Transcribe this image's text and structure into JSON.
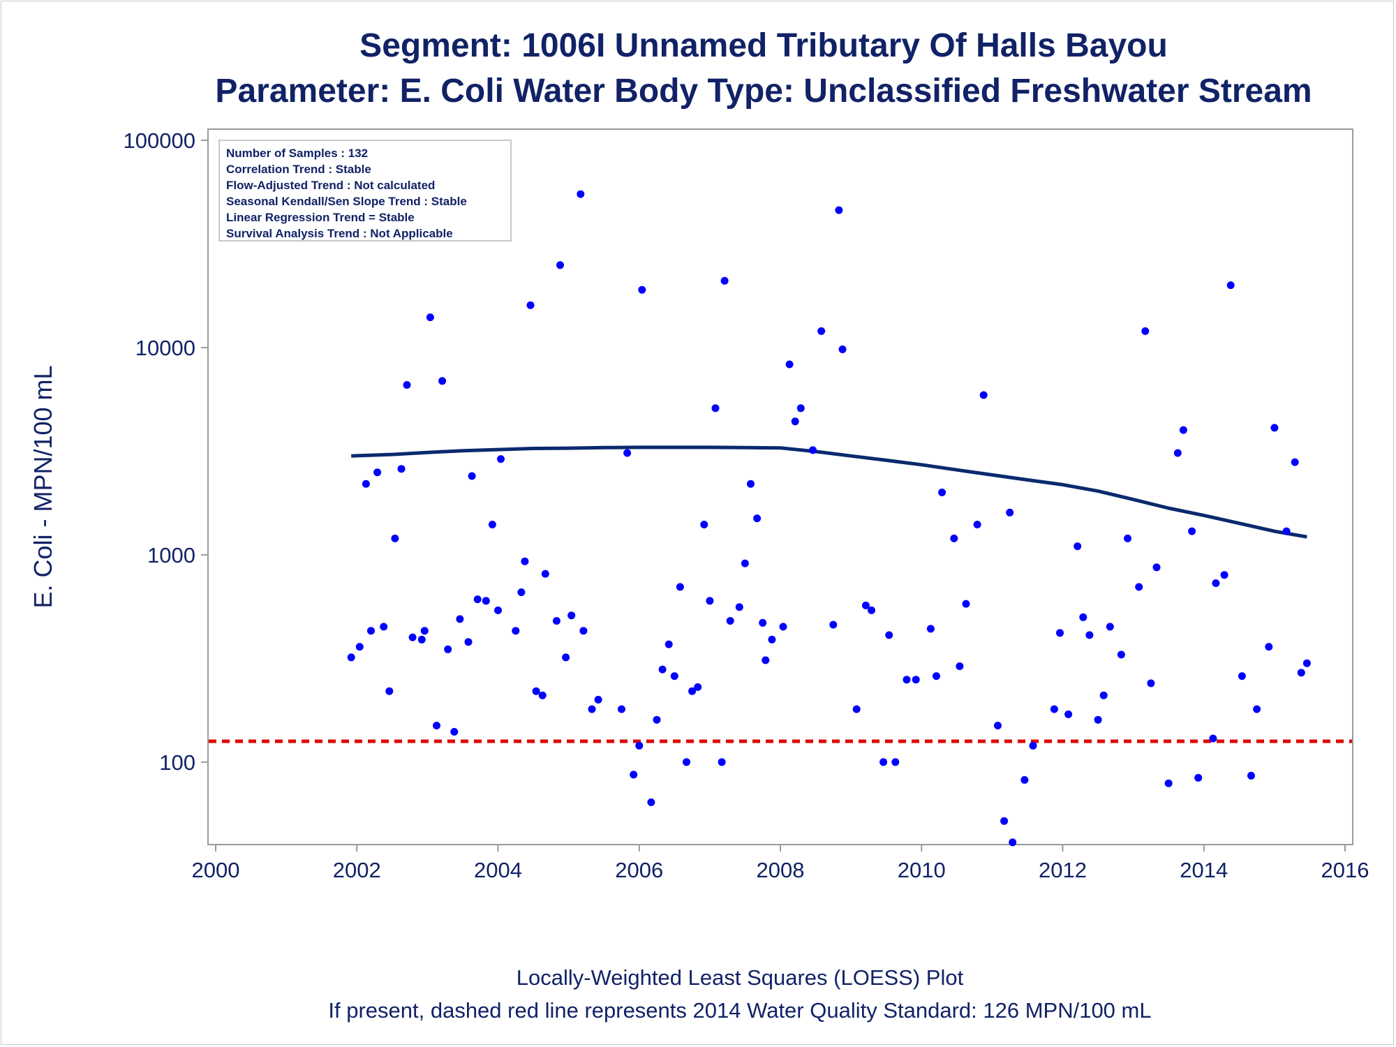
{
  "title_line1": "Segment: 1006I  Unnamed Tributary Of Halls Bayou",
  "title_line2": "Parameter: E. Coli   Water Body Type: Unclassified Freshwater Stream",
  "footnote_line1": "Locally-Weighted Least Squares (LOESS) Plot",
  "footnote_line2": "If present, dashed red line represents 2014 Water Quality Standard: 126 MPN/100 mL",
  "stats_box": [
    "Number of Samples : 132",
    "Correlation Trend : Stable",
    "Flow-Adjusted Trend : Not calculated",
    "Seasonal Kendall/Sen Slope Trend : Stable",
    "Linear Regression Trend = Stable",
    "Survival Analysis Trend : Not Applicable"
  ],
  "colors": {
    "text": "#112266",
    "points": "#0000ff",
    "loess": "#0a2a6e",
    "standard": "#dd0000",
    "axis": "#9a9a9a"
  },
  "chart_data": {
    "type": "scatter",
    "xlabel": "",
    "ylabel": "E. Coli - MPN/100 mL",
    "xlim": [
      2000,
      2016
    ],
    "ylim": [
      40,
      100000
    ],
    "y_scale": "log",
    "x_ticks": [
      2000,
      2002,
      2004,
      2006,
      2008,
      2010,
      2012,
      2014,
      2016
    ],
    "y_ticks": [
      100,
      1000,
      10000,
      100000
    ],
    "standard_line": 126,
    "points": [
      [
        2001.92,
        320
      ],
      [
        2002.04,
        360
      ],
      [
        2002.13,
        2200
      ],
      [
        2002.2,
        430
      ],
      [
        2002.29,
        2500
      ],
      [
        2002.38,
        450
      ],
      [
        2002.46,
        220
      ],
      [
        2002.54,
        1200
      ],
      [
        2002.63,
        2600
      ],
      [
        2002.71,
        6600
      ],
      [
        2002.79,
        400
      ],
      [
        2002.92,
        390
      ],
      [
        2002.96,
        430
      ],
      [
        2003.04,
        14000
      ],
      [
        2003.13,
        150
      ],
      [
        2003.21,
        6900
      ],
      [
        2003.29,
        350
      ],
      [
        2003.38,
        140
      ],
      [
        2003.46,
        490
      ],
      [
        2003.58,
        380
      ],
      [
        2003.63,
        2400
      ],
      [
        2003.71,
        610
      ],
      [
        2003.83,
        600
      ],
      [
        2003.92,
        1400
      ],
      [
        2004.0,
        540
      ],
      [
        2004.04,
        2900
      ],
      [
        2004.25,
        430
      ],
      [
        2004.33,
        660
      ],
      [
        2004.38,
        930
      ],
      [
        2004.46,
        16000
      ],
      [
        2004.54,
        220
      ],
      [
        2004.63,
        210
      ],
      [
        2004.67,
        810
      ],
      [
        2004.83,
        480
      ],
      [
        2004.88,
        25000
      ],
      [
        2004.96,
        320
      ],
      [
        2005.04,
        510
      ],
      [
        2005.17,
        55000
      ],
      [
        2005.21,
        430
      ],
      [
        2005.33,
        180
      ],
      [
        2005.42,
        200
      ],
      [
        2005.75,
        180
      ],
      [
        2005.83,
        3100
      ],
      [
        2005.92,
        87
      ],
      [
        2006.0,
        120
      ],
      [
        2006.04,
        19000
      ],
      [
        2006.17,
        64
      ],
      [
        2006.25,
        160
      ],
      [
        2006.33,
        280
      ],
      [
        2006.42,
        370
      ],
      [
        2006.5,
        260
      ],
      [
        2006.58,
        700
      ],
      [
        2006.67,
        100
      ],
      [
        2006.75,
        220
      ],
      [
        2006.83,
        230
      ],
      [
        2006.92,
        1400
      ],
      [
        2007.0,
        600
      ],
      [
        2007.08,
        5100
      ],
      [
        2007.17,
        100
      ],
      [
        2007.21,
        21000
      ],
      [
        2007.29,
        480
      ],
      [
        2007.42,
        560
      ],
      [
        2007.5,
        910
      ],
      [
        2007.58,
        2200
      ],
      [
        2007.67,
        1500
      ],
      [
        2007.75,
        470
      ],
      [
        2007.79,
        310
      ],
      [
        2007.88,
        390
      ],
      [
        2008.04,
        450
      ],
      [
        2008.13,
        8300
      ],
      [
        2008.21,
        4400
      ],
      [
        2008.29,
        5100
      ],
      [
        2008.46,
        3200
      ],
      [
        2008.58,
        12000
      ],
      [
        2008.75,
        460
      ],
      [
        2008.83,
        46000
      ],
      [
        2008.88,
        9800
      ],
      [
        2009.08,
        180
      ],
      [
        2009.21,
        570
      ],
      [
        2009.29,
        540
      ],
      [
        2009.46,
        100
      ],
      [
        2009.54,
        410
      ],
      [
        2009.63,
        100
      ],
      [
        2009.79,
        250
      ],
      [
        2009.92,
        250
      ],
      [
        2010.13,
        440
      ],
      [
        2010.21,
        260
      ],
      [
        2010.29,
        2000
      ],
      [
        2010.46,
        1200
      ],
      [
        2010.54,
        290
      ],
      [
        2010.63,
        580
      ],
      [
        2010.79,
        1400
      ],
      [
        2010.88,
        5900
      ],
      [
        2011.08,
        150
      ],
      [
        2011.17,
        52
      ],
      [
        2011.25,
        1600
      ],
      [
        2011.29,
        41
      ],
      [
        2011.46,
        82
      ],
      [
        2011.58,
        120
      ],
      [
        2011.88,
        180
      ],
      [
        2011.96,
        420
      ],
      [
        2012.08,
        170
      ],
      [
        2012.21,
        1100
      ],
      [
        2012.29,
        500
      ],
      [
        2012.38,
        410
      ],
      [
        2012.5,
        160
      ],
      [
        2012.58,
        210
      ],
      [
        2012.67,
        450
      ],
      [
        2012.83,
        330
      ],
      [
        2012.92,
        1200
      ],
      [
        2013.08,
        700
      ],
      [
        2013.17,
        12000
      ],
      [
        2013.25,
        240
      ],
      [
        2013.33,
        870
      ],
      [
        2013.5,
        79
      ],
      [
        2013.63,
        3100
      ],
      [
        2013.71,
        4000
      ],
      [
        2013.83,
        1300
      ],
      [
        2013.92,
        84
      ],
      [
        2014.13,
        130
      ],
      [
        2014.17,
        730
      ],
      [
        2014.29,
        800
      ],
      [
        2014.38,
        20000
      ],
      [
        2014.54,
        260
      ],
      [
        2014.67,
        86
      ],
      [
        2014.75,
        180
      ],
      [
        2014.92,
        360
      ],
      [
        2015.0,
        4100
      ],
      [
        2015.17,
        1300
      ],
      [
        2015.29,
        2800
      ],
      [
        2015.38,
        270
      ],
      [
        2015.46,
        300
      ]
    ],
    "loess_line": [
      [
        2001.92,
        3000
      ],
      [
        2002.5,
        3050
      ],
      [
        2003.0,
        3120
      ],
      [
        2003.5,
        3180
      ],
      [
        2004.0,
        3220
      ],
      [
        2004.5,
        3260
      ],
      [
        2005.0,
        3270
      ],
      [
        2005.5,
        3290
      ],
      [
        2006.0,
        3300
      ],
      [
        2006.5,
        3300
      ],
      [
        2007.0,
        3300
      ],
      [
        2007.5,
        3290
      ],
      [
        2008.0,
        3280
      ],
      [
        2008.5,
        3150
      ],
      [
        2009.0,
        3000
      ],
      [
        2009.5,
        2860
      ],
      [
        2010.0,
        2720
      ],
      [
        2010.5,
        2570
      ],
      [
        2011.0,
        2430
      ],
      [
        2011.5,
        2300
      ],
      [
        2012.0,
        2180
      ],
      [
        2012.5,
        2030
      ],
      [
        2013.0,
        1850
      ],
      [
        2013.5,
        1680
      ],
      [
        2014.0,
        1550
      ],
      [
        2014.5,
        1420
      ],
      [
        2015.0,
        1300
      ],
      [
        2015.46,
        1220
      ]
    ]
  }
}
